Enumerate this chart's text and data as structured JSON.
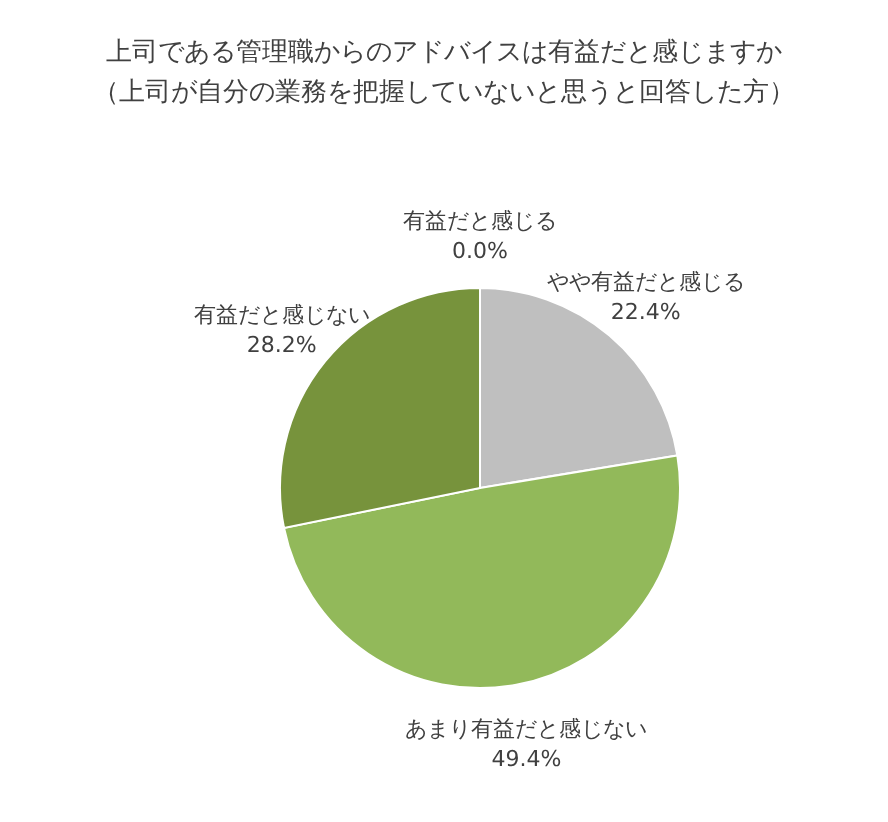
{
  "chart_data": {
    "type": "pie",
    "title": "上司である管理職からのアドバイスは有益だと感じますか",
    "subtitle": "（上司が自分の業務を把握していないと思うと回答した方）",
    "categories": [
      "有益だと感じる",
      "やや有益だと感じる",
      "あまり有益だと感じない",
      "有益だと感じない"
    ],
    "values": [
      0.0,
      22.4,
      49.4,
      28.2
    ],
    "value_labels": [
      "0.0%",
      "22.4%",
      "49.4%",
      "28.2%"
    ],
    "colors": [
      "#4f6228",
      "#bfbfbf",
      "#92b95a",
      "#77933c"
    ]
  }
}
